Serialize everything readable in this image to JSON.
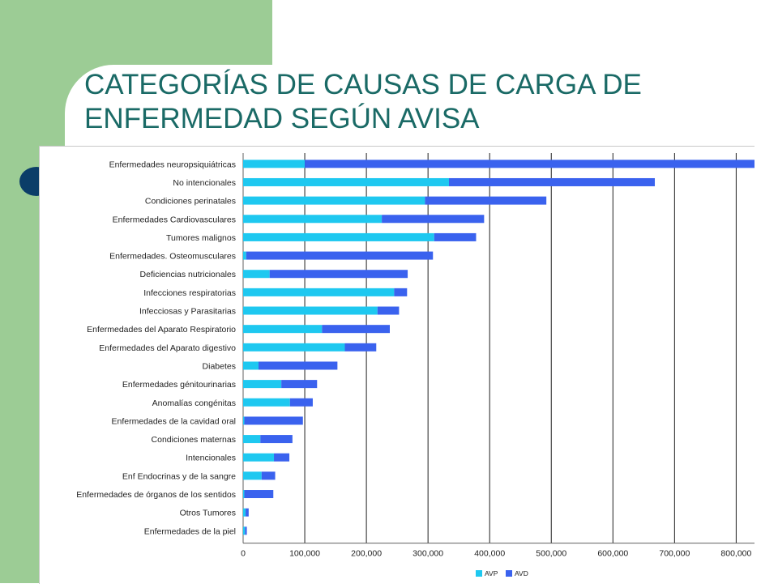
{
  "slide": {
    "title_line1": "CATEGORÍAS DE CAUSAS DE CARGA DE",
    "title_line2": "ENFERMEDAD SEGÚN AVISA",
    "background_color": "#9ccc95",
    "title_color": "#1a6a66",
    "bullet_color": "#0b3d68"
  },
  "chart_data": {
    "type": "bar",
    "orientation": "horizontal",
    "stacked": true,
    "categories": [
      "Enfermedades neuropsiquiátricas",
      "No intencionales",
      "Condiciones perinatales",
      "Enfermedades  Cardiovasculares",
      "Tumores malignos",
      "Enfermedades. Osteomusculares",
      "Deficiencias nutricionales",
      "Infecciones respiratorias",
      "Infecciosas y Parasitarias",
      "Enfermedades del  Aparato Respiratorio",
      "Enfermedades del Aparato digestivo",
      "Diabetes",
      "Enfermedades génitourinarias",
      "Anomalías congénitas",
      "Enfermedades de la cavidad oral",
      "Condiciones maternas",
      "Intencionales",
      "Enf Endocrinas y de la sangre",
      "Enfermedades de órganos de los sentidos",
      "Otros Tumores",
      "Enfermedades de la piel"
    ],
    "series": [
      {
        "name": "AVP",
        "color": "#1ec8f0",
        "values": [
          100000,
          334000,
          295000,
          225000,
          310000,
          5000,
          43000,
          245000,
          218000,
          128000,
          165000,
          25000,
          62000,
          76000,
          2000,
          28000,
          50000,
          30000,
          2000,
          4000,
          3000
        ]
      },
      {
        "name": "AVD",
        "color": "#3a62ee",
        "values": [
          730000,
          334000,
          197000,
          166000,
          68000,
          303000,
          224000,
          21000,
          35000,
          110000,
          51000,
          128000,
          58000,
          37000,
          95000,
          52000,
          25000,
          22000,
          47000,
          5000,
          3000
        ]
      }
    ],
    "x_ticks": [
      "0",
      "100,000",
      "200,000",
      "300,000",
      "400,000",
      "500,000",
      "600,000",
      "700,000",
      "800,000"
    ],
    "xlim": [
      0,
      830000
    ],
    "grid": "vertical",
    "legend": "bottom"
  }
}
